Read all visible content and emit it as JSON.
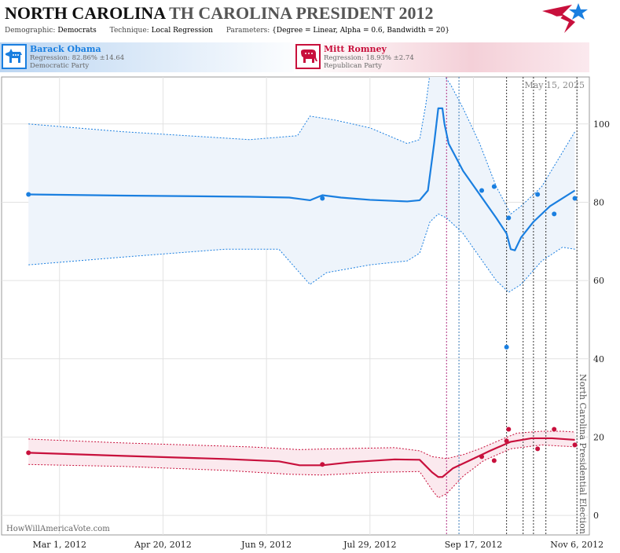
{
  "header": {
    "title_state": "NORTH CAROLINA",
    "title_race": "TH CAROLINA PRESIDENT 2012",
    "demographic_label": "Demographic:",
    "demographic_value": "Democrats",
    "technique_label": "Technique:",
    "technique_value": "Local Regression",
    "parameters_label": "Parameters:",
    "parameters_value": "{Degree = Linear, Alpha = 0.6, Bandwidth = 20}"
  },
  "candidates": [
    {
      "name": "Barack Obama",
      "regression": "Regression: 82.86% ±14.64",
      "party": "Democratic Party",
      "color": "#1a7fe0"
    },
    {
      "name": "Mitt Romney",
      "regression": "Regression: 18.93% ±2.74",
      "party": "Republican Party",
      "color": "#c8103c"
    }
  ],
  "footer": {
    "source": "HowWillAmericaVote.com"
  },
  "chart_data": {
    "type": "scatter",
    "date_stamp": "May 15, 2025",
    "event_label": "North Carolina Presidential Election",
    "x_axis": {
      "min": "2012-02-02",
      "max": "2012-11-12",
      "ticks": [
        "2012-03-01",
        "2012-04-20",
        "2012-06-09",
        "2012-07-29",
        "2012-09-17",
        "2012-11-06"
      ],
      "tick_labels": [
        "Mar 1, 2012",
        "Apr 20, 2012",
        "Jun 9, 2012",
        "Jul 29, 2012",
        "Sep 17, 2012",
        "Nov 6, 2012"
      ]
    },
    "y_axis": {
      "min": -5,
      "max": 112,
      "ticks": [
        0,
        20,
        40,
        60,
        80,
        100
      ],
      "position": "right",
      "grid": true
    },
    "event_lines": [
      {
        "date": "2012-09-04",
        "color": "#b03080"
      },
      {
        "date": "2012-09-10",
        "color": "#3a7ab8"
      },
      {
        "date": "2012-10-03",
        "color": "#333333"
      },
      {
        "date": "2012-10-11",
        "color": "#333333"
      },
      {
        "date": "2012-10-16",
        "color": "#333333"
      },
      {
        "date": "2012-10-22",
        "color": "#333333"
      },
      {
        "date": "2012-11-06",
        "color": "#333333"
      }
    ],
    "series": [
      {
        "name": "Barack Obama",
        "color": "#1a7fe0",
        "points": [
          {
            "x": "2012-02-15",
            "y": 82
          },
          {
            "x": "2012-07-06",
            "y": 81
          },
          {
            "x": "2012-09-21",
            "y": 83
          },
          {
            "x": "2012-09-27",
            "y": 84
          },
          {
            "x": "2012-10-03",
            "y": 43
          },
          {
            "x": "2012-10-04",
            "y": 76
          },
          {
            "x": "2012-10-18",
            "y": 82
          },
          {
            "x": "2012-10-26",
            "y": 77
          },
          {
            "x": "2012-11-05",
            "y": 81
          }
        ],
        "trend": [
          [
            "2012-02-15",
            82
          ],
          [
            "2012-04-01",
            81.7
          ],
          [
            "2012-06-01",
            81.4
          ],
          [
            "2012-06-20",
            81.2
          ],
          [
            "2012-06-30",
            80.5
          ],
          [
            "2012-07-06",
            81.8
          ],
          [
            "2012-07-15",
            81.2
          ],
          [
            "2012-07-29",
            80.6
          ],
          [
            "2012-08-16",
            80.2
          ],
          [
            "2012-08-22",
            80.5
          ],
          [
            "2012-08-26",
            83
          ],
          [
            "2012-08-29",
            95
          ],
          [
            "2012-08-31",
            104
          ],
          [
            "2012-09-02",
            104
          ],
          [
            "2012-09-03",
            100
          ],
          [
            "2012-09-05",
            95
          ],
          [
            "2012-09-12",
            88
          ],
          [
            "2012-09-20",
            82
          ],
          [
            "2012-09-28",
            76
          ],
          [
            "2012-10-03",
            72
          ],
          [
            "2012-10-05",
            68
          ],
          [
            "2012-10-07",
            67.7
          ],
          [
            "2012-10-10",
            71
          ],
          [
            "2012-10-16",
            75
          ],
          [
            "2012-10-24",
            79
          ],
          [
            "2012-11-05",
            83
          ]
        ],
        "upper": [
          [
            "2012-02-15",
            100
          ],
          [
            "2012-04-01",
            98
          ],
          [
            "2012-06-01",
            96
          ],
          [
            "2012-06-24",
            97
          ],
          [
            "2012-06-30",
            102
          ],
          [
            "2012-07-12",
            101
          ],
          [
            "2012-07-29",
            99
          ],
          [
            "2012-08-16",
            95
          ],
          [
            "2012-08-22",
            96
          ],
          [
            "2012-08-25",
            105
          ],
          [
            "2012-08-27",
            113
          ],
          [
            "2012-09-02",
            113
          ],
          [
            "2012-09-06",
            110
          ],
          [
            "2012-09-12",
            104
          ],
          [
            "2012-09-20",
            95
          ],
          [
            "2012-09-28",
            84
          ],
          [
            "2012-10-05",
            77
          ],
          [
            "2012-10-10",
            79
          ],
          [
            "2012-10-20",
            84
          ],
          [
            "2012-10-28",
            91
          ],
          [
            "2012-11-05",
            98
          ]
        ],
        "lower": [
          [
            "2012-02-15",
            64
          ],
          [
            "2012-04-01",
            66
          ],
          [
            "2012-05-20",
            68
          ],
          [
            "2012-06-15",
            68
          ],
          [
            "2012-06-25",
            62
          ],
          [
            "2012-06-30",
            59
          ],
          [
            "2012-07-08",
            62
          ],
          [
            "2012-07-29",
            64
          ],
          [
            "2012-08-16",
            65
          ],
          [
            "2012-08-22",
            67
          ],
          [
            "2012-08-27",
            75
          ],
          [
            "2012-08-31",
            77
          ],
          [
            "2012-09-04",
            76
          ],
          [
            "2012-09-12",
            72
          ],
          [
            "2012-09-20",
            66
          ],
          [
            "2012-09-28",
            60
          ],
          [
            "2012-10-04",
            57
          ],
          [
            "2012-10-10",
            59
          ],
          [
            "2012-10-20",
            65
          ],
          [
            "2012-10-30",
            68.5
          ],
          [
            "2012-11-05",
            68
          ]
        ]
      },
      {
        "name": "Mitt Romney",
        "color": "#c8103c",
        "points": [
          {
            "x": "2012-02-15",
            "y": 16
          },
          {
            "x": "2012-07-06",
            "y": 13
          },
          {
            "x": "2012-09-21",
            "y": 15
          },
          {
            "x": "2012-09-27",
            "y": 14
          },
          {
            "x": "2012-10-03",
            "y": 19
          },
          {
            "x": "2012-10-04",
            "y": 22
          },
          {
            "x": "2012-10-18",
            "y": 17
          },
          {
            "x": "2012-10-26",
            "y": 22
          },
          {
            "x": "2012-11-05",
            "y": 18
          }
        ],
        "trend": [
          [
            "2012-02-15",
            16
          ],
          [
            "2012-04-01",
            15.2
          ],
          [
            "2012-05-20",
            14.4
          ],
          [
            "2012-06-15",
            13.8
          ],
          [
            "2012-06-25",
            12.8
          ],
          [
            "2012-07-06",
            12.8
          ],
          [
            "2012-07-20",
            13.6
          ],
          [
            "2012-08-10",
            14.3
          ],
          [
            "2012-08-22",
            14.2
          ],
          [
            "2012-08-28",
            11
          ],
          [
            "2012-08-31",
            9.8
          ],
          [
            "2012-09-02",
            9.8
          ],
          [
            "2012-09-07",
            12
          ],
          [
            "2012-09-15",
            14
          ],
          [
            "2012-09-25",
            16.5
          ],
          [
            "2012-10-05",
            18.8
          ],
          [
            "2012-10-15",
            19.7
          ],
          [
            "2012-10-25",
            19.7
          ],
          [
            "2012-11-05",
            19.3
          ]
        ],
        "upper": [
          [
            "2012-02-15",
            19.5
          ],
          [
            "2012-04-01",
            18.5
          ],
          [
            "2012-06-01",
            17.5
          ],
          [
            "2012-06-25",
            16.8
          ],
          [
            "2012-07-10",
            17
          ],
          [
            "2012-08-10",
            17.3
          ],
          [
            "2012-08-22",
            16.5
          ],
          [
            "2012-08-28",
            15
          ],
          [
            "2012-09-04",
            14.5
          ],
          [
            "2012-09-12",
            15.5
          ],
          [
            "2012-09-20",
            17
          ],
          [
            "2012-10-01",
            19.5
          ],
          [
            "2012-10-08",
            21
          ],
          [
            "2012-10-20",
            21.5
          ],
          [
            "2012-10-30",
            21.5
          ],
          [
            "2012-11-05",
            21.3
          ]
        ],
        "lower": [
          [
            "2012-02-15",
            13
          ],
          [
            "2012-04-01",
            12.5
          ],
          [
            "2012-05-20",
            11.5
          ],
          [
            "2012-06-20",
            10.5
          ],
          [
            "2012-07-06",
            10.3
          ],
          [
            "2012-08-01",
            11
          ],
          [
            "2012-08-22",
            11.2
          ],
          [
            "2012-08-28",
            6.5
          ],
          [
            "2012-08-31",
            4.5
          ],
          [
            "2012-09-04",
            5.5
          ],
          [
            "2012-09-12",
            10
          ],
          [
            "2012-09-22",
            14
          ],
          [
            "2012-10-05",
            17
          ],
          [
            "2012-10-20",
            18
          ],
          [
            "2012-11-05",
            17.5
          ]
        ]
      }
    ]
  }
}
